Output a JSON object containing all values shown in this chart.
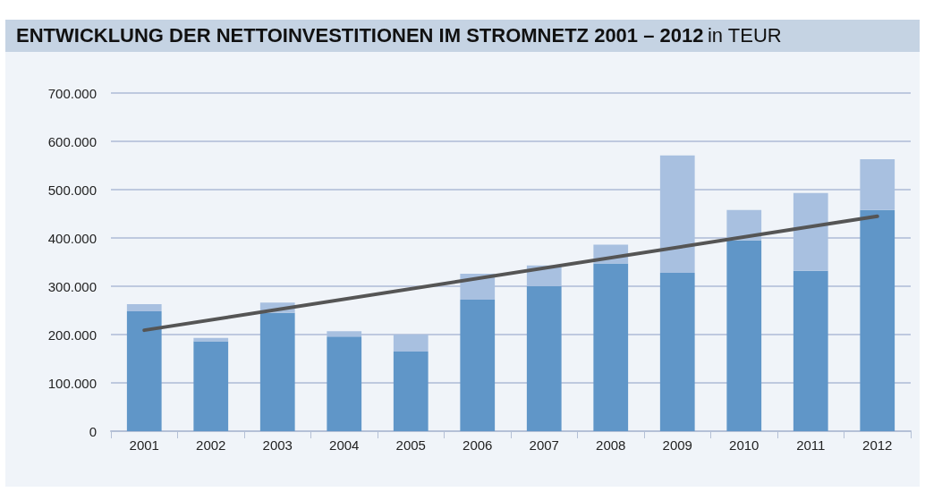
{
  "chart_data": {
    "type": "bar",
    "title": "ENTWICKLUNG DER NETTOINVESTITIONEN IM STROMNETZ 2001 – 2012",
    "subtitle": "in TEUR",
    "categories": [
      "2001",
      "2002",
      "2003",
      "2004",
      "2005",
      "2006",
      "2007",
      "2008",
      "2009",
      "2010",
      "2011",
      "2012"
    ],
    "stacked": true,
    "series": [
      {
        "color": "#6096c8",
        "values": [
          248000,
          186000,
          245000,
          196000,
          165000,
          272000,
          300000,
          347000,
          328000,
          395000,
          332000,
          458000
        ]
      },
      {
        "color": "#a8c0e0",
        "values": [
          15000,
          7000,
          21000,
          11000,
          35000,
          54000,
          43000,
          39000,
          243000,
          63000,
          161000,
          105000
        ]
      },
      {
        "type": "line",
        "color": "#555555",
        "values": [
          209000,
          null,
          null,
          null,
          null,
          null,
          null,
          null,
          null,
          null,
          null,
          445000
        ]
      }
    ],
    "ylim": [
      0,
      700000
    ],
    "yticks": [
      0,
      {
        "value": 100000,
        "label": "100.000"
      },
      {
        "value": 200000,
        "label": "200.000"
      },
      {
        "value": 300000,
        "label": "300.000"
      },
      {
        "value": 400000,
        "label": "400.000"
      },
      {
        "value": 500000,
        "label": "500.000"
      },
      {
        "value": 600000,
        "label": "600.000"
      },
      {
        "value": 700000,
        "label": "700.000"
      }
    ],
    "grid": "y",
    "marker": "none"
  }
}
